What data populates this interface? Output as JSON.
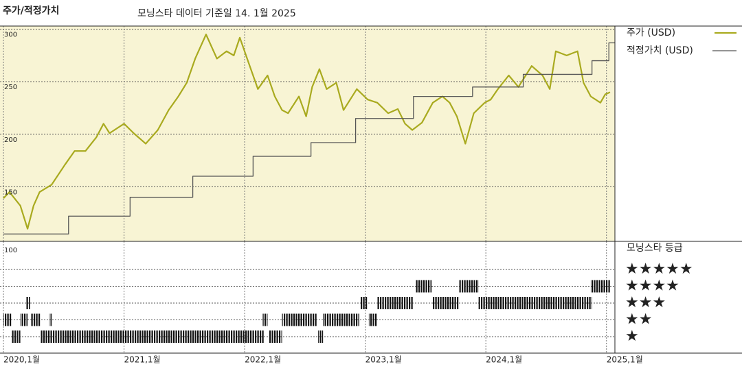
{
  "chart_data": [
    {
      "type": "line",
      "title": "주가/적정가치",
      "subtitle": "모닝스타 데이터 기준일 14. 1월 2025",
      "xlim": [
        2020,
        2025.07
      ],
      "xticks": [
        {
          "value": 2020,
          "label": "2020,1월"
        },
        {
          "value": 2021,
          "label": "2021,1월"
        },
        {
          "value": 2022,
          "label": "2022,1월"
        },
        {
          "value": 2023,
          "label": "2023,1월"
        },
        {
          "value": 2024,
          "label": "2024,1월"
        },
        {
          "value": 2025,
          "label": "2025,1월"
        }
      ],
      "ylim": [
        98,
        303
      ],
      "yticks": [
        150,
        200,
        250,
        300
      ],
      "grid": true,
      "series": [
        {
          "name": "주가 (USD)",
          "color": "#a9aa1f",
          "x": [
            2020.0,
            2020.05,
            2020.14,
            2020.2,
            2020.25,
            2020.3,
            2020.4,
            2020.51,
            2020.59,
            2020.68,
            2020.77,
            2020.83,
            2020.88,
            2021.0,
            2021.08,
            2021.18,
            2021.28,
            2021.37,
            2021.45,
            2021.52,
            2021.59,
            2021.68,
            2021.77,
            2021.85,
            2021.91,
            2021.96,
            2022.03,
            2022.11,
            2022.19,
            2022.25,
            2022.31,
            2022.36,
            2022.45,
            2022.51,
            2022.56,
            2022.62,
            2022.68,
            2022.76,
            2022.82,
            2022.93,
            2023.02,
            2023.1,
            2023.19,
            2023.27,
            2023.33,
            2023.39,
            2023.47,
            2023.56,
            2023.64,
            2023.7,
            2023.76,
            2023.83,
            2023.9,
            2023.99,
            2024.04,
            2024.1,
            2024.19,
            2024.27,
            2024.38,
            2024.47,
            2024.53,
            2024.58,
            2024.67,
            2024.76,
            2024.81,
            2024.87,
            2024.95,
            2024.99,
            2025.03
          ],
          "values": [
            139,
            145,
            132,
            110,
            132,
            145,
            152,
            171,
            184,
            184,
            197,
            210,
            201,
            210,
            201,
            191,
            204,
            223,
            236,
            249,
            272,
            295,
            272,
            279,
            275,
            292,
            269,
            243,
            256,
            236,
            223,
            220,
            236,
            217,
            245,
            262,
            243,
            249,
            223,
            243,
            233,
            230,
            220,
            224,
            210,
            204,
            211,
            230,
            236,
            230,
            217,
            191,
            220,
            230,
            233,
            243,
            256,
            245,
            265,
            256,
            243,
            279,
            275,
            279,
            249,
            236,
            230,
            238,
            240
          ]
        },
        {
          "name": "적정가치 (USD)",
          "color": "#555555",
          "step": true,
          "x": [
            2020.0,
            2020.54,
            2021.05,
            2021.57,
            2022.07,
            2022.55,
            2022.92,
            2023.4,
            2023.89,
            2024.31,
            2024.88,
            2025.02,
            2025.07
          ],
          "values": [
            105,
            122,
            140,
            160,
            179,
            192,
            215,
            236,
            245,
            257,
            270,
            287,
            287
          ]
        }
      ]
    },
    {
      "type": "rating",
      "title": "모닝스타 등급",
      "axis_label": "100",
      "star_labels": [
        "★",
        "★★",
        "★★★",
        "★★★★",
        "★★★★★"
      ],
      "periods": [
        {
          "start": 2020.0,
          "end": 2020.07,
          "stars": 2
        },
        {
          "start": 2020.07,
          "end": 2020.14,
          "stars": 1
        },
        {
          "start": 2020.14,
          "end": 2020.2,
          "stars": 2
        },
        {
          "start": 2020.19,
          "end": 2020.22,
          "stars": 3
        },
        {
          "start": 2020.23,
          "end": 2020.31,
          "stars": 2
        },
        {
          "start": 2020.31,
          "end": 2022.16,
          "stars": 1
        },
        {
          "start": 2020.38,
          "end": 2020.4,
          "stars": 2
        },
        {
          "start": 2022.15,
          "end": 2022.19,
          "stars": 2
        },
        {
          "start": 2022.2,
          "end": 2022.31,
          "stars": 1
        },
        {
          "start": 2022.31,
          "end": 2022.6,
          "stars": 2
        },
        {
          "start": 2022.61,
          "end": 2022.65,
          "stars": 1
        },
        {
          "start": 2022.65,
          "end": 2022.95,
          "stars": 2
        },
        {
          "start": 2022.96,
          "end": 2023.02,
          "stars": 3
        },
        {
          "start": 2023.03,
          "end": 2023.1,
          "stars": 2
        },
        {
          "start": 2023.1,
          "end": 2023.4,
          "stars": 3
        },
        {
          "start": 2023.42,
          "end": 2023.55,
          "stars": 4
        },
        {
          "start": 2023.56,
          "end": 2023.78,
          "stars": 3
        },
        {
          "start": 2023.78,
          "end": 2023.94,
          "stars": 4
        },
        {
          "start": 2023.94,
          "end": 2024.88,
          "stars": 3
        },
        {
          "start": 2024.87,
          "end": 2025.03,
          "stars": 4
        }
      ]
    }
  ]
}
